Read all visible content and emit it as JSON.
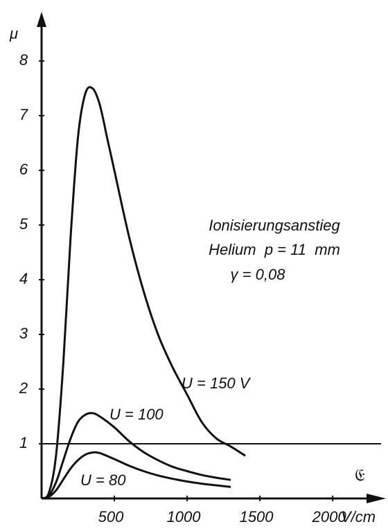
{
  "chart_data": {
    "type": "line",
    "y_label": "μ",
    "x_label": "𝔈",
    "x_unit": "V/cm",
    "annotations": [
      "Ionisierungsanstieg",
      "Helium  p = 11  mm",
      "γ = 0,08"
    ],
    "xlim": [
      0,
      2290
    ],
    "ylim": [
      0,
      8.9
    ],
    "xticks": [
      500,
      1000,
      1500,
      2000
    ],
    "yticks": [
      1,
      2,
      3,
      4,
      5,
      6,
      7,
      8
    ],
    "reference_line": 1,
    "color": "#111111",
    "series": [
      {
        "name": "U = 150 V",
        "x": [
          0,
          50,
          100,
          150,
          200,
          250,
          300,
          350,
          400,
          450,
          500,
          600,
          700,
          800,
          900,
          1000,
          1100,
          1200,
          1300,
          1400
        ],
        "values": [
          0,
          0.1,
          0.8,
          2.5,
          4.8,
          6.6,
          7.4,
          7.5,
          7.2,
          6.6,
          6.0,
          4.8,
          3.8,
          3.0,
          2.4,
          1.9,
          1.4,
          1.1,
          0.95,
          0.78
        ]
      },
      {
        "name": "U = 100",
        "x": [
          0,
          50,
          100,
          150,
          200,
          250,
          300,
          350,
          400,
          500,
          600,
          700,
          800,
          900,
          1000,
          1100,
          1200,
          1300
        ],
        "values": [
          0,
          0.05,
          0.3,
          0.7,
          1.1,
          1.4,
          1.53,
          1.56,
          1.5,
          1.3,
          1.05,
          0.85,
          0.7,
          0.58,
          0.5,
          0.43,
          0.38,
          0.34
        ]
      },
      {
        "name": "U = 80",
        "x": [
          0,
          50,
          100,
          150,
          200,
          250,
          300,
          350,
          400,
          500,
          600,
          700,
          800,
          900,
          1000,
          1100,
          1200,
          1300
        ],
        "values": [
          0,
          0.03,
          0.15,
          0.35,
          0.55,
          0.7,
          0.8,
          0.84,
          0.83,
          0.72,
          0.6,
          0.5,
          0.42,
          0.36,
          0.31,
          0.27,
          0.24,
          0.21
        ]
      }
    ]
  }
}
